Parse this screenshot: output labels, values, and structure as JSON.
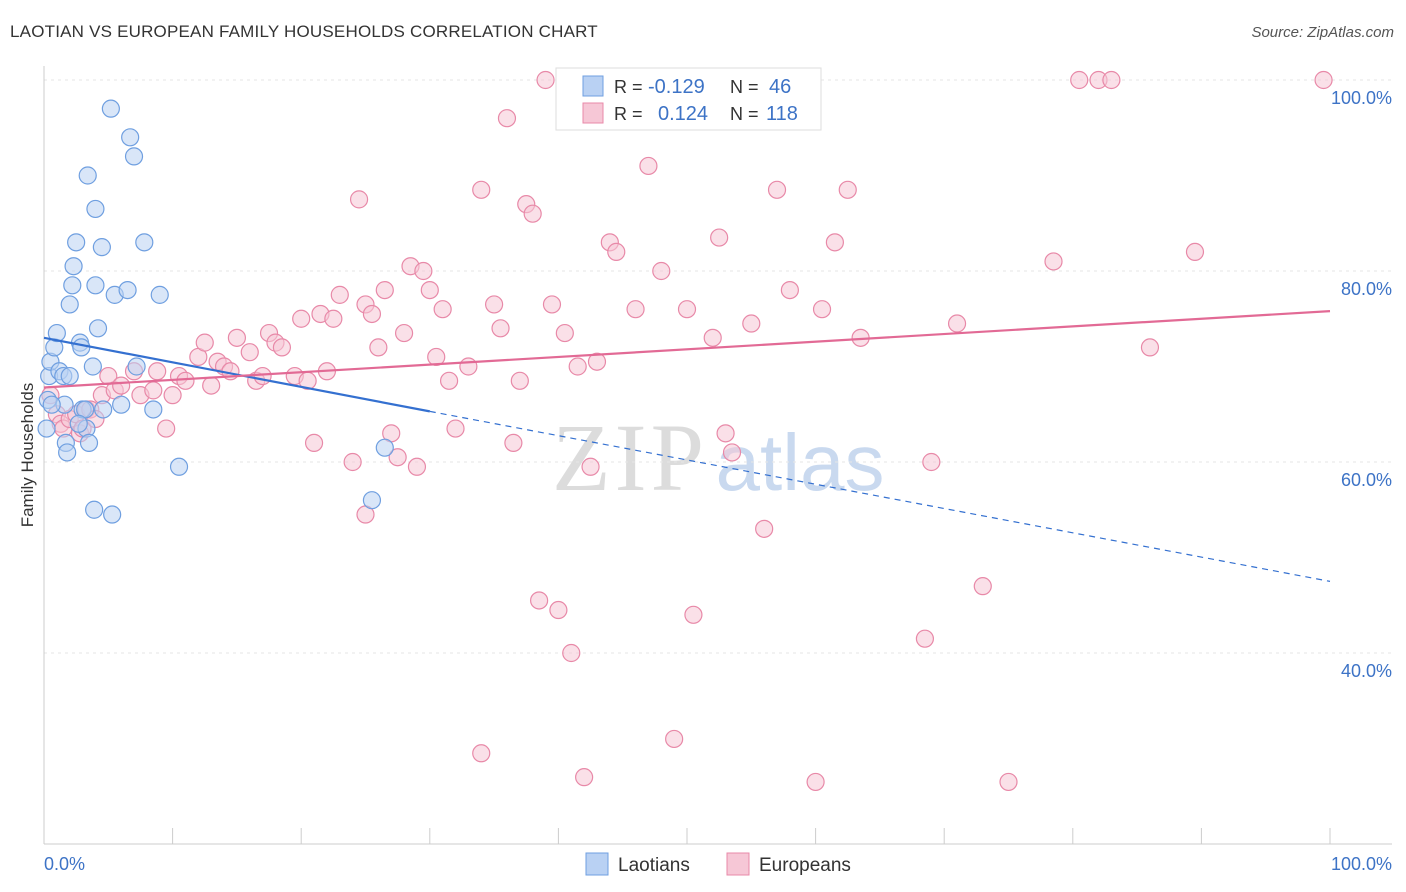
{
  "header": {
    "title": "LAOTIAN VS EUROPEAN FAMILY HOUSEHOLDS CORRELATION CHART",
    "source": "Source: ZipAtlas.com"
  },
  "watermark": {
    "zip": "ZIP",
    "atlas": "atlas"
  },
  "chart_data": {
    "type": "scatter",
    "title": "LAOTIAN VS EUROPEAN FAMILY HOUSEHOLDS CORRELATION CHART",
    "xlabel": "",
    "ylabel": "Family Households",
    "xlim": [
      0,
      100
    ],
    "ylim": [
      20,
      100
    ],
    "x_tick_labels": [
      "0.0%",
      "100.0%"
    ],
    "y_ticks": [
      {
        "value": 100,
        "label": "100.0%"
      },
      {
        "value": 80,
        "label": "80.0%"
      },
      {
        "value": 60,
        "label": "60.0%"
      },
      {
        "value": 40,
        "label": "40.0%"
      }
    ],
    "grid": true,
    "legend_position": "top-center",
    "stats": [
      {
        "series": "Laotians",
        "r_label": "R =",
        "r_value": "-0.129",
        "n_label": "N =",
        "n_value": "46"
      },
      {
        "series": "Europeans",
        "r_label": "R =",
        "r_value": "0.124",
        "n_label": "N =",
        "n_value": "118"
      }
    ],
    "series": [
      {
        "name": "Laotians",
        "color": "#6f9fe0",
        "fill": "#b9d1f3",
        "trend": {
          "x0": 0,
          "y0": 73.0,
          "x1": 30,
          "y1": 65.3,
          "dashed_to_x": 100,
          "dashed_to_y": 47.5,
          "color": "#3470d0"
        },
        "points": [
          [
            0.2,
            63.5
          ],
          [
            0.3,
            66.5
          ],
          [
            0.4,
            69
          ],
          [
            0.5,
            70.5
          ],
          [
            0.8,
            72
          ],
          [
            1,
            73.5
          ],
          [
            1.2,
            69.5
          ],
          [
            1.5,
            69
          ],
          [
            1.6,
            66
          ],
          [
            1.7,
            62
          ],
          [
            1.8,
            61
          ],
          [
            2,
            69
          ],
          [
            2,
            76.5
          ],
          [
            2.2,
            78.5
          ],
          [
            2.3,
            80.5
          ],
          [
            2.5,
            83
          ],
          [
            2.8,
            72.5
          ],
          [
            2.9,
            72
          ],
          [
            3,
            65.5
          ],
          [
            3.2,
            65.5
          ],
          [
            3.3,
            63.5
          ],
          [
            3.4,
            90
          ],
          [
            3.5,
            62
          ],
          [
            3.8,
            70
          ],
          [
            3.9,
            55
          ],
          [
            4,
            86.5
          ],
          [
            4,
            78.5
          ],
          [
            4.2,
            74
          ],
          [
            4.5,
            82.5
          ],
          [
            4.6,
            65.5
          ],
          [
            5.2,
            97
          ],
          [
            5.3,
            54.5
          ],
          [
            5.5,
            77.5
          ],
          [
            6,
            66
          ],
          [
            6.5,
            78
          ],
          [
            6.7,
            94
          ],
          [
            7,
            92
          ],
          [
            7.2,
            70
          ],
          [
            7.8,
            83
          ],
          [
            8.5,
            65.5
          ],
          [
            9,
            77.5
          ],
          [
            10.5,
            59.5
          ],
          [
            25.5,
            56
          ],
          [
            26.5,
            61.5
          ],
          [
            0.6,
            66
          ],
          [
            2.7,
            64
          ]
        ]
      },
      {
        "name": "Europeans",
        "color": "#e889a8",
        "fill": "#f6c7d6",
        "trend": {
          "x0": 0,
          "y0": 67.8,
          "x1": 100,
          "y1": 75.8,
          "color": "#e26a95"
        },
        "points": [
          [
            0.5,
            67
          ],
          [
            1,
            65
          ],
          [
            1.3,
            64
          ],
          [
            1.5,
            63.5
          ],
          [
            2,
            64.5
          ],
          [
            2.5,
            65
          ],
          [
            2.8,
            63
          ],
          [
            3,
            63.5
          ],
          [
            3.3,
            65.5
          ],
          [
            3.6,
            65.5
          ],
          [
            4,
            64.5
          ],
          [
            4.5,
            67
          ],
          [
            5,
            69
          ],
          [
            5.5,
            67.5
          ],
          [
            6,
            68
          ],
          [
            7,
            69.5
          ],
          [
            7.5,
            67
          ],
          [
            8.5,
            67.5
          ],
          [
            8.8,
            69.5
          ],
          [
            9.5,
            63.5
          ],
          [
            10,
            67
          ],
          [
            10.5,
            69
          ],
          [
            11,
            68.5
          ],
          [
            12,
            71
          ],
          [
            12.5,
            72.5
          ],
          [
            13,
            68
          ],
          [
            13.5,
            70.5
          ],
          [
            14,
            70
          ],
          [
            14.5,
            69.5
          ],
          [
            15,
            73
          ],
          [
            16,
            71.5
          ],
          [
            16.5,
            68.5
          ],
          [
            17,
            69
          ],
          [
            17.5,
            73.5
          ],
          [
            18,
            72.5
          ],
          [
            18.5,
            72
          ],
          [
            19.5,
            69
          ],
          [
            20,
            75
          ],
          [
            20.5,
            68.5
          ],
          [
            21,
            62
          ],
          [
            21.5,
            75.5
          ],
          [
            22,
            69.5
          ],
          [
            22.5,
            75
          ],
          [
            23,
            77.5
          ],
          [
            24,
            60
          ],
          [
            24.5,
            87.5
          ],
          [
            25,
            76.5
          ],
          [
            25.5,
            75.5
          ],
          [
            26,
            72
          ],
          [
            26.5,
            78
          ],
          [
            27,
            63
          ],
          [
            27.5,
            60.5
          ],
          [
            28,
            73.5
          ],
          [
            28.5,
            80.5
          ],
          [
            29,
            59.5
          ],
          [
            29.5,
            80
          ],
          [
            30,
            78
          ],
          [
            30.5,
            71
          ],
          [
            31,
            76
          ],
          [
            31.5,
            68.5
          ],
          [
            32,
            63.5
          ],
          [
            33,
            70
          ],
          [
            34,
            88.5
          ],
          [
            35,
            76.5
          ],
          [
            35.5,
            74
          ],
          [
            36,
            96
          ],
          [
            37,
            68.5
          ],
          [
            37.5,
            87
          ],
          [
            38,
            86
          ],
          [
            38.5,
            45.5
          ],
          [
            39,
            100
          ],
          [
            39.5,
            76.5
          ],
          [
            40,
            44.5
          ],
          [
            40.5,
            73.5
          ],
          [
            41,
            40
          ],
          [
            41.5,
            70
          ],
          [
            42,
            27
          ],
          [
            42.5,
            59.5
          ],
          [
            43,
            70.5
          ],
          [
            44,
            83
          ],
          [
            44.5,
            82
          ],
          [
            46,
            76
          ],
          [
            47,
            91
          ],
          [
            48,
            80
          ],
          [
            49,
            31
          ],
          [
            50,
            76
          ],
          [
            50.5,
            44
          ],
          [
            51,
            96
          ],
          [
            52,
            73
          ],
          [
            52.5,
            83.5
          ],
          [
            53,
            63
          ],
          [
            53.5,
            61
          ],
          [
            55,
            74.5
          ],
          [
            56,
            53
          ],
          [
            57,
            88.5
          ],
          [
            58,
            78
          ],
          [
            60,
            26.5
          ],
          [
            60.5,
            76
          ],
          [
            61.5,
            83
          ],
          [
            62.5,
            88.5
          ],
          [
            63.5,
            73
          ],
          [
            68.5,
            41.5
          ],
          [
            69,
            60
          ],
          [
            71,
            74.5
          ],
          [
            73,
            47
          ],
          [
            75,
            26.5
          ],
          [
            78.5,
            81
          ],
          [
            80.5,
            100
          ],
          [
            82,
            100
          ],
          [
            83,
            100
          ],
          [
            86,
            72
          ],
          [
            89.5,
            82
          ],
          [
            99.5,
            100
          ],
          [
            25,
            54.5
          ],
          [
            34,
            29.5
          ],
          [
            36.5,
            62
          ]
        ]
      }
    ]
  },
  "bottom_legend": [
    {
      "name": "Laotians"
    },
    {
      "name": "Europeans"
    }
  ]
}
